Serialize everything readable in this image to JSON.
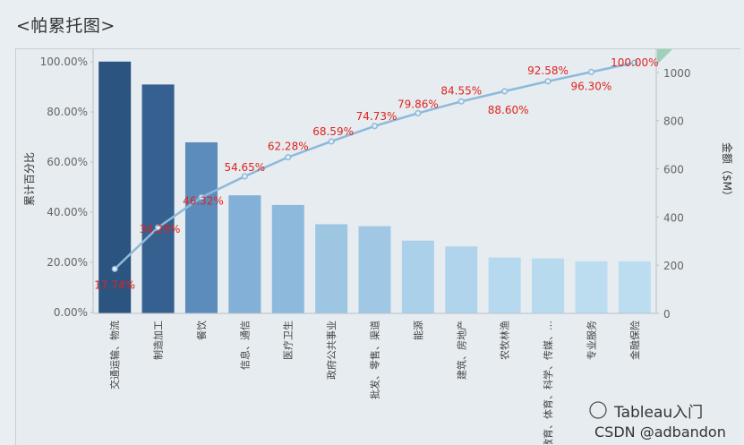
{
  "page": {
    "title": "<帕累托图>"
  },
  "watermark": {
    "line1": "Tableau入门",
    "line2": "CSDN @adbandon"
  },
  "chart_data": {
    "type": "bar",
    "subtype": "pareto",
    "title": "<帕累托图>",
    "categories": [
      "交通运输、物流",
      "制造加工",
      "餐饮",
      "信息、通信",
      "医疗卫生",
      "政府公共事业",
      "批发、零售、渠道",
      "能源",
      "建筑、房地产",
      "农牧林渔",
      "教育、体育、科学、传媒、…",
      "专业服务",
      "金融保险"
    ],
    "series": [
      {
        "name": "金额（$M）",
        "axis": "right",
        "type": "bar",
        "values": [
          1045,
          950,
          710,
          490,
          450,
          370,
          362,
          302,
          278,
          232,
          228,
          216,
          216
        ]
      },
      {
        "name": "累计百分比",
        "axis": "left",
        "type": "line",
        "values": [
          17.74,
          34.29,
          46.32,
          54.65,
          62.28,
          68.59,
          74.73,
          79.86,
          84.55,
          88.6,
          92.58,
          96.3,
          100.0
        ]
      }
    ],
    "data_labels": [
      "17.74%",
      "34.29%",
      "46.32%",
      "54.65%",
      "62.28%",
      "68.59%",
      "74.73%",
      "79.86%",
      "84.55%",
      "88.60%",
      "92.58%",
      "96.30%",
      "100.00%"
    ],
    "ylabel_left": "累计百分比",
    "ylabel_right": "金额（$M）",
    "y_left_ticks": [
      "100.00%",
      "80.00%",
      "60.00%",
      "40.00%",
      "20.00%",
      "0.00%"
    ],
    "y_right_ticks": [
      "1000",
      "800",
      "600",
      "400",
      "200",
      "0"
    ],
    "ylim_left": [
      0,
      100
    ],
    "ylim_right": [
      0,
      1100
    ],
    "bar_colors": [
      "#2b5480",
      "#35608f",
      "#5b8cbc",
      "#82b0d6",
      "#8db9dc",
      "#9dc6e3",
      "#a0c8e5",
      "#abd0ea",
      "#b0d4ec",
      "#b6d9ef",
      "#b8daef",
      "#bcdcf0",
      "#bcdcf0"
    ],
    "line_color": "#8cb9dc",
    "label_color": "#e0231f",
    "grid": false
  }
}
